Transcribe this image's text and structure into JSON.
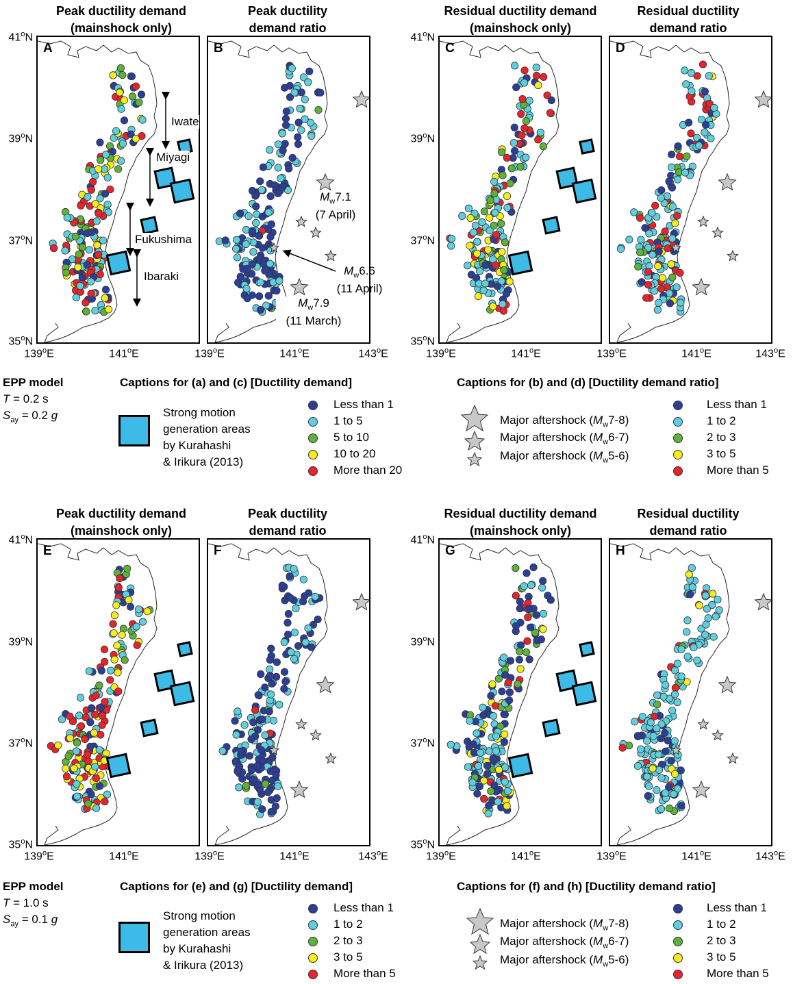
{
  "colors": {
    "dark_blue": "#2b3f99",
    "light_blue": "#5fcfdf",
    "green": "#5db337",
    "yellow": "#f6ee1a",
    "red": "#e8232b",
    "smga": "#3dbbe6",
    "star": "#c8c8c8"
  },
  "axes": {
    "lat": [
      "41",
      "39",
      "37",
      "35"
    ],
    "lat_suffix": "N",
    "lon": [
      "139",
      "141",
      "143"
    ],
    "lon_suffix": "E",
    "degree": "o"
  },
  "panels": [
    {
      "id": "A",
      "title1": "Peak ductility demand",
      "title2": "(mainshock only)"
    },
    {
      "id": "B",
      "title1": "Peak ductility",
      "title2": "demand ratio"
    },
    {
      "id": "C",
      "title1": "Residual ductility demand",
      "title2": "(mainshock only)"
    },
    {
      "id": "D",
      "title1": "Residual ductility",
      "title2": "demand ratio"
    },
    {
      "id": "E",
      "title1": "Peak ductility demand",
      "title2": "(mainshock only)"
    },
    {
      "id": "F",
      "title1": "Peak ductility",
      "title2": "demand ratio"
    },
    {
      "id": "G",
      "title1": "Residual ductility demand",
      "title2": "(mainshock only)"
    },
    {
      "id": "H",
      "title1": "Residual ductility",
      "title2": "demand ratio"
    }
  ],
  "prefectures": [
    "Iwate",
    "Miyagi",
    "Fukushima",
    "Ibaraki"
  ],
  "quakes": {
    "q1": {
      "m": "M",
      "w": "w",
      "mag": "7.1",
      "date": "(7 April)"
    },
    "q2": {
      "m": "M",
      "w": "w",
      "mag": "6.6",
      "date": "(11 April)"
    },
    "q3": {
      "m": "M",
      "w": "w",
      "mag": "7.9",
      "date": "(11 March)"
    }
  },
  "legend_top": {
    "model": "EPP model",
    "t_label": "T",
    "t_value": " = 0.2 s",
    "s_label": "S",
    "s_sub": "ay",
    "s_value": " = 0.2 ",
    "g": "g",
    "smga_lines": [
      "Strong motion",
      "generation areas",
      "by Kurahashi",
      "& Irikura (2013)"
    ],
    "caption_left": "Captions for (a) and (c) [Ductility demand]",
    "left_items": [
      "Less than 1",
      "1 to 5",
      "5 to 10",
      "10 to 20",
      "More than 20"
    ],
    "caption_right": "Captions for (b) and (d) [Ductility demand ratio]",
    "star_items": [
      {
        "pre": "Major aftershock (",
        "m": "M",
        "w": "w",
        "range": "7-8)"
      },
      {
        "pre": "Major aftershock (",
        "m": "M",
        "w": "w",
        "range": "6-7)"
      },
      {
        "pre": "Major aftershock (",
        "m": "M",
        "w": "w",
        "range": "5-6)"
      }
    ],
    "right_items": [
      "Less than 1",
      "1 to 2",
      "2 to 3",
      "3 to 5",
      "More than 5"
    ]
  },
  "legend_bottom": {
    "model": "EPP model",
    "t_label": "T",
    "t_value": " = 1.0 s",
    "s_label": "S",
    "s_sub": "ay",
    "s_value": " = 0.1 ",
    "g": "g",
    "smga_lines": [
      "Strong motion",
      "generation areas",
      "by Kurahashi",
      "& Irikura (2013)"
    ],
    "caption_left": "Captions for (e) and (g) [Ductility demand]",
    "left_items": [
      "Less than 1",
      "1 to 2",
      "2 to 3",
      "3 to 5",
      "More than 5"
    ],
    "caption_right": "Captions for (f) and (h) [Ductility demand ratio]",
    "star_items": [
      {
        "pre": "Major aftershock (",
        "m": "M",
        "w": "w",
        "range": "7-8)"
      },
      {
        "pre": "Major aftershock (",
        "m": "M",
        "w": "w",
        "range": "6-7)"
      },
      {
        "pre": "Major aftershock (",
        "m": "M",
        "w": "w",
        "range": "5-6)"
      }
    ],
    "right_items": [
      "Less than 1",
      "1 to 2",
      "2 to 3",
      "3 to 5",
      "More than 5"
    ]
  },
  "maps": [
    {
      "id": "A",
      "show_smga": true,
      "show_stars": false,
      "weights": [
        0.16,
        0.34,
        0.16,
        0.14,
        0.2
      ],
      "seed": 11
    },
    {
      "id": "B",
      "show_smga": false,
      "show_stars": true,
      "weights": [
        0.52,
        0.44,
        0.02,
        0.01,
        0.01
      ],
      "seed": 23
    },
    {
      "id": "C",
      "show_smga": true,
      "show_stars": false,
      "weights": [
        0.12,
        0.42,
        0.16,
        0.14,
        0.16
      ],
      "seed": 37
    },
    {
      "id": "D",
      "show_smga": false,
      "show_stars": true,
      "weights": [
        0.14,
        0.56,
        0.06,
        0.06,
        0.18
      ],
      "seed": 41
    },
    {
      "id": "E",
      "show_smga": true,
      "show_stars": false,
      "weights": [
        0.14,
        0.26,
        0.14,
        0.2,
        0.26
      ],
      "seed": 53
    },
    {
      "id": "F",
      "show_smga": false,
      "show_stars": true,
      "weights": [
        0.56,
        0.4,
        0.02,
        0.01,
        0.01
      ],
      "seed": 67
    },
    {
      "id": "G",
      "show_smga": true,
      "show_stars": false,
      "weights": [
        0.36,
        0.32,
        0.12,
        0.1,
        0.1
      ],
      "seed": 71
    },
    {
      "id": "H",
      "show_smga": false,
      "show_stars": true,
      "weights": [
        0.1,
        0.7,
        0.08,
        0.06,
        0.06
      ],
      "seed": 83
    }
  ]
}
